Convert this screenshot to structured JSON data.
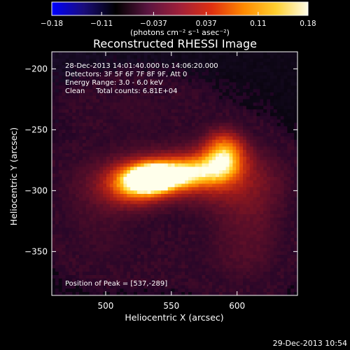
{
  "chart_data": {
    "type": "heatmap",
    "title": "Reconstructed RHESSI Image",
    "xlabel": "Heliocentric X (arcsec)",
    "ylabel": "Heliocentric Y (arcsec)",
    "xlim": [
      459,
      646
    ],
    "ylim": [
      -386,
      -186
    ],
    "x_ticks": [
      500,
      550,
      600
    ],
    "y_ticks": [
      -200,
      -250,
      -300,
      -350
    ],
    "x_tick_labels": [
      "500",
      "550",
      "600"
    ],
    "y_tick_labels": [
      "−200",
      "−250",
      "−300",
      "−350"
    ],
    "colorbar": {
      "range": [
        -0.18,
        0.18
      ],
      "ticks": [
        -0.18,
        -0.11,
        -0.037,
        0.037,
        0.11,
        0.18
      ],
      "tick_labels": [
        "−0.18",
        "−0.11",
        "−0.037",
        "0.037",
        "0.11",
        "0.18"
      ],
      "unit_label": "(photons cm⁻² s⁻¹ asec⁻²)",
      "colormap": [
        "#0000ff",
        "#1a0d7a",
        "#000000",
        "#5a1540",
        "#a0203a",
        "#e03010",
        "#ff8a00",
        "#ffd030",
        "#fffde8"
      ]
    },
    "peak_position": [
      537,
      -289
    ],
    "annotations": [
      "28-Dec-2013 14:01:40.000 to 14:06:20.000",
      "Detectors: 3F 5F 6F 7F 8F 9F, Att 0",
      "Energy Range: 3.0 - 6.0 keV",
      "Clean     Total counts: 6.81E+04",
      "Position of Peak = [537,-289]"
    ],
    "timestamp": "29-Dec-2013 10:54"
  }
}
